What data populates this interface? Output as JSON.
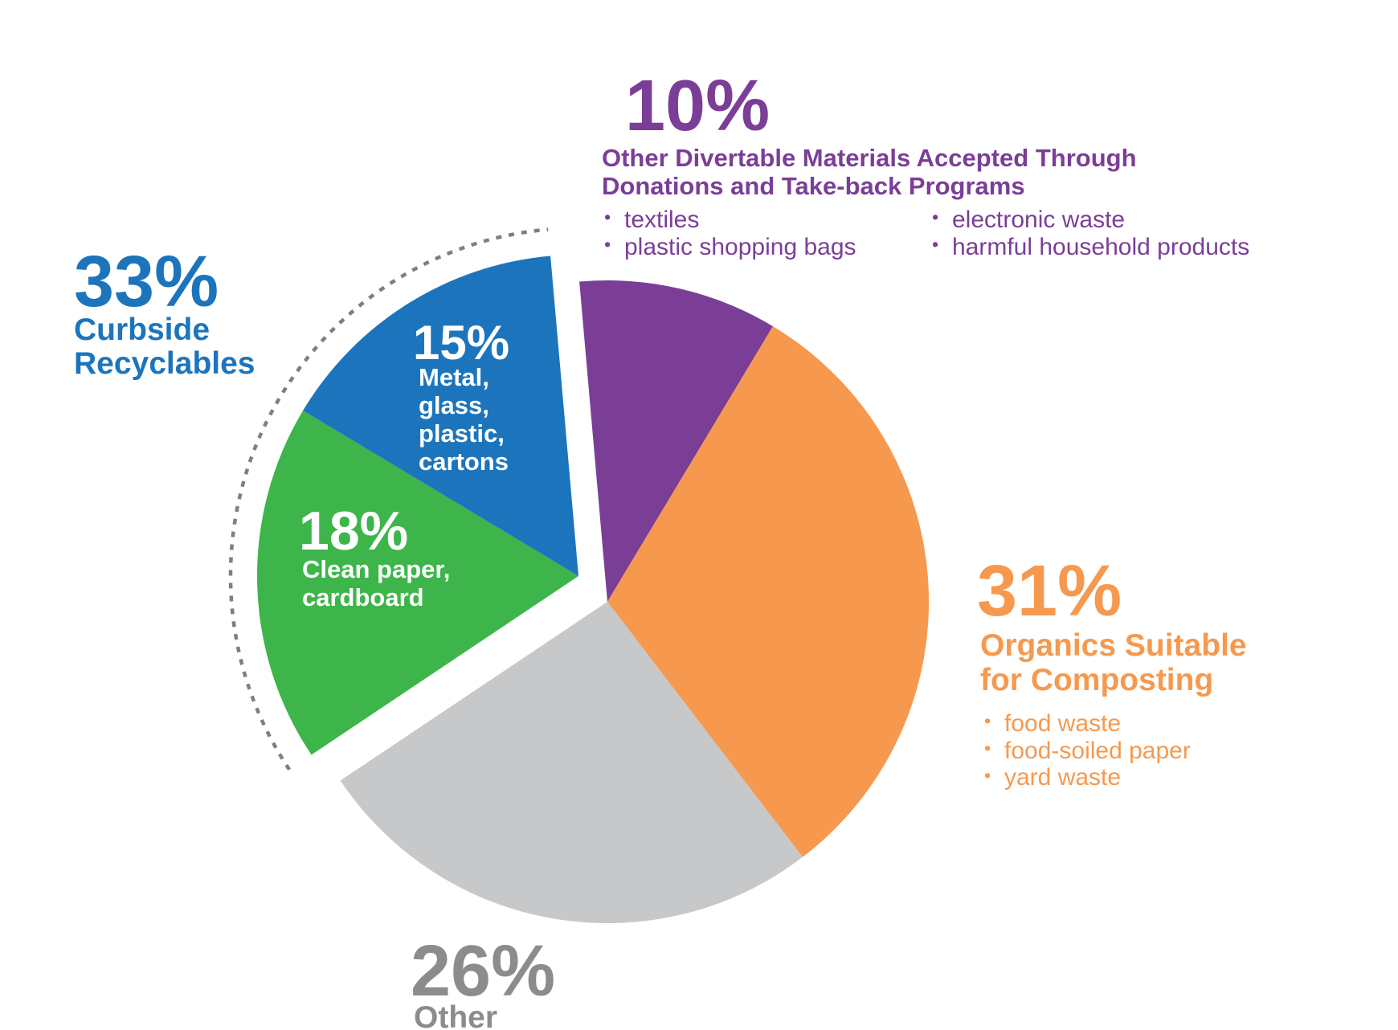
{
  "chart_data": {
    "type": "pie",
    "unit": "percent",
    "total": 100,
    "start_angle_deg": -5,
    "legend_position": "around-slices",
    "segments": [
      {
        "key": "divertable",
        "label": "Other Divertable Materials Accepted Through Donations and Take-back Programs",
        "value": 10,
        "color": "#7B3E97",
        "exploded": false,
        "details": [
          "textiles",
          "plastic shopping bags",
          "electronic waste",
          "harmful household products"
        ]
      },
      {
        "key": "organics",
        "label": "Organics Suitable for Composting",
        "value": 31,
        "color": "#F6994E",
        "exploded": false,
        "details": [
          "food waste",
          "food-soiled paper",
          "yard waste"
        ]
      },
      {
        "key": "other",
        "label": "Other",
        "value": 26,
        "color": "#C7C8CA",
        "exploded": false,
        "details": []
      },
      {
        "key": "clean-paper",
        "label": "Clean paper, cardboard",
        "value": 18,
        "color": "#3DB54A",
        "exploded": true,
        "details": []
      },
      {
        "key": "metal-glass",
        "label": "Metal, glass, plastic, cartons",
        "value": 15,
        "color": "#1C75BC",
        "exploded": true,
        "details": []
      }
    ],
    "group": {
      "label": "Curbside Recyclables",
      "value": 33,
      "color": "#1C75BC",
      "members": [
        "clean-paper",
        "metal-glass"
      ],
      "outline_style": "dashed"
    },
    "colors": {
      "dashed_outline": "#7D7F82",
      "gray_text": "#8A8C8E",
      "white_slice_label": "#FFFFFF"
    }
  },
  "labels": {
    "curbside": {
      "pct": "33%",
      "name": "Curbside\nRecyclables"
    },
    "divertable": {
      "pct": "10%",
      "heading": "Other Divertable Materials Accepted Through\nDonations and Take-back Programs",
      "bullets_col1": [
        "textiles",
        "plastic shopping bags"
      ],
      "bullets_col2": [
        "electronic waste",
        "harmful household products"
      ]
    },
    "organics": {
      "pct": "31%",
      "heading": "Organics Suitable\nfor Composting",
      "bullets": [
        "food waste",
        "food-soiled paper",
        "yard waste"
      ]
    },
    "other": {
      "pct": "26%",
      "name": "Other"
    },
    "metal": {
      "pct": "15%",
      "lines": "Metal,\nglass,\nplastic,\ncartons"
    },
    "paper": {
      "pct": "18%",
      "lines": "Clean paper,\ncardboard"
    }
  }
}
